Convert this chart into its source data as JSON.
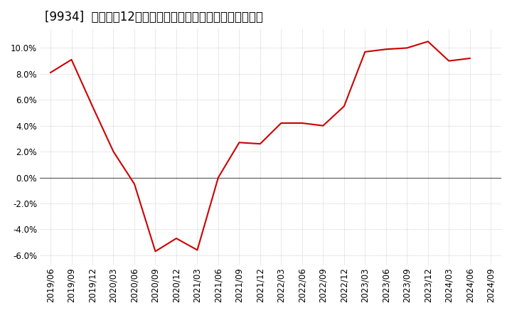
{
  "title": "[9934]  売上高の12か月移動合計の対前年同期増減率の推移",
  "line_color": "#cc0000",
  "background_color": "#ffffff",
  "grid_color": "#bbbbbb",
  "zero_line_color": "#555555",
  "dates": [
    "2019/06",
    "2019/09",
    "2019/12",
    "2020/03",
    "2020/06",
    "2020/09",
    "2020/12",
    "2021/03",
    "2021/06",
    "2021/09",
    "2021/12",
    "2022/03",
    "2022/06",
    "2022/09",
    "2022/12",
    "2023/03",
    "2023/06",
    "2023/09",
    "2023/12",
    "2024/03",
    "2024/06",
    "2024/09"
  ],
  "values": [
    0.081,
    0.091,
    0.055,
    0.02,
    -0.005,
    -0.057,
    -0.047,
    -0.056,
    0.0,
    0.027,
    0.026,
    0.042,
    0.042,
    0.04,
    0.055,
    0.097,
    0.099,
    0.1,
    0.105,
    0.09,
    0.092,
    null
  ],
  "ylim": [
    -0.068,
    0.115
  ],
  "yticks": [
    -0.06,
    -0.04,
    -0.02,
    0.0,
    0.02,
    0.04,
    0.06,
    0.08,
    0.1
  ],
  "title_fontsize": 12,
  "tick_fontsize": 8.5
}
